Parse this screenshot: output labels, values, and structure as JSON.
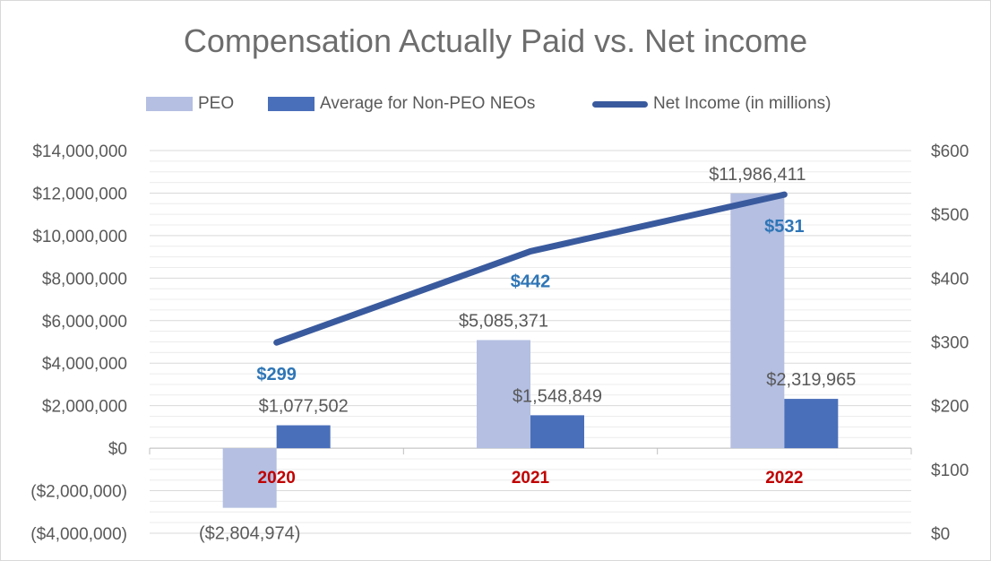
{
  "chart_data": {
    "type": "bar",
    "title": "Compensation Actually Paid vs. Net income",
    "categories": [
      "2020",
      "2021",
      "2022"
    ],
    "series": [
      {
        "name": "PEO",
        "kind": "bar",
        "axis": "left",
        "color": "#b4bfe2",
        "values": [
          -2804974,
          5085371,
          11986411
        ],
        "labels": [
          "($2,804,974)",
          "$5,085,371",
          "$11,986,411"
        ]
      },
      {
        "name": "Average for Non-PEO NEOs",
        "kind": "bar",
        "axis": "left",
        "color": "#4a6fba",
        "values": [
          1077502,
          1548849,
          2319965
        ],
        "labels": [
          "$1,077,502",
          "$1,548,849",
          "$2,319,965"
        ]
      },
      {
        "name": "Net Income (in millions)",
        "kind": "line",
        "axis": "right",
        "color": "#3a5a9e",
        "values": [
          299,
          442,
          531
        ],
        "labels": [
          "$299",
          "$442",
          "$531"
        ]
      }
    ],
    "left_axis": {
      "min": -4000000,
      "max": 14000000,
      "step": 2000000,
      "tick_labels": [
        "($4,000,000)",
        "($2,000,000)",
        "$0",
        "$2,000,000",
        "$4,000,000",
        "$6,000,000",
        "$8,000,000",
        "$10,000,000",
        "$12,000,000",
        "$14,000,000"
      ]
    },
    "right_axis": {
      "min": 0,
      "max": 600,
      "step": 100,
      "tick_labels": [
        "$0",
        "$100",
        "$200",
        "$300",
        "$400",
        "$500",
        "$600"
      ]
    },
    "legend_position": "top",
    "category_label_color": "#c00000",
    "line_label_color": "#2e75b6",
    "gridlines": true
  }
}
